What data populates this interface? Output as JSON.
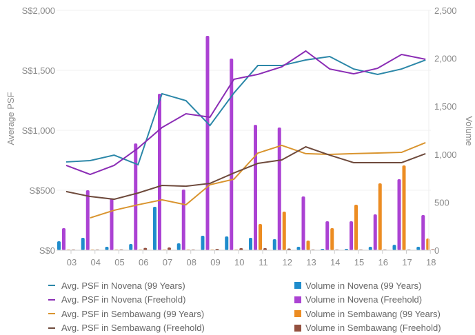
{
  "chart_data": {
    "type": "bar+line",
    "categories": [
      "03",
      "04",
      "05",
      "06",
      "07",
      "08",
      "09",
      "10",
      "11",
      "12",
      "13",
      "14",
      "15",
      "16",
      "17",
      "18"
    ],
    "y_left": {
      "label": "Average PSF",
      "range": [
        0,
        2000
      ],
      "ticks": [
        "S$0",
        "S$500",
        "S$1,000",
        "S$1,500",
        "S$2,000"
      ],
      "tick_values": [
        0,
        500,
        1000,
        1500,
        2000
      ]
    },
    "y_right": {
      "label": "Volume",
      "range": [
        0,
        2500
      ],
      "ticks": [
        "0",
        "500",
        "1,000",
        "1,500",
        "2,000",
        "2,500"
      ],
      "tick_values": [
        0,
        500,
        1000,
        1500,
        2000,
        2500
      ]
    },
    "grid": true,
    "legend_position": "bottom",
    "lines": [
      {
        "name": "Avg. PSF in Novena (99 Years)",
        "color": "#2b87a8",
        "values": [
          736,
          747,
          793,
          713,
          1305,
          1247,
          1040,
          1310,
          1540,
          1540,
          1586,
          1615,
          1511,
          1466,
          1511,
          1586
        ]
      },
      {
        "name": "Avg. PSF in Novena (Freehold)",
        "color": "#8b2db5",
        "values": [
          707,
          632,
          707,
          851,
          1023,
          1138,
          1109,
          1425,
          1466,
          1529,
          1661,
          1511,
          1471,
          1517,
          1632,
          1592
        ]
      },
      {
        "name": "Avg. PSF in Sembawang (99 Years)",
        "color": "#d9942e",
        "values": [
          null,
          270,
          333,
          379,
          420,
          379,
          546,
          592,
          810,
          874,
          805,
          799,
          805,
          810,
          816,
          897
        ]
      },
      {
        "name": "Avg. PSF in Sembawang (Freehold)",
        "color": "#6e4a3c",
        "values": [
          489,
          448,
          425,
          477,
          540,
          534,
          557,
          644,
          724,
          753,
          862,
          793,
          730,
          730,
          730,
          805
        ]
      }
    ],
    "bars": [
      {
        "name": "Volume in Novena (99 Years)",
        "color": "#1f8ccc",
        "values": [
          93,
          129,
          36,
          65,
          453,
          72,
          151,
          144,
          129,
          115,
          36,
          14,
          14,
          36,
          57,
          36
        ]
      },
      {
        "name": "Volume in Novena (Freehold)",
        "color": "#ab42d3",
        "values": [
          230,
          625,
          539,
          1113,
          1631,
          632,
          2234,
          1997,
          1307,
          1279,
          560,
          302,
          302,
          374,
          740,
          366
        ]
      },
      {
        "name": "Volume in Sembawang (99 Years)",
        "color": "#ec8c22",
        "values": [
          0,
          2,
          2,
          2,
          2,
          2,
          2,
          2,
          273,
          402,
          101,
          230,
          474,
          697,
          884,
          122
        ]
      },
      {
        "name": "Volume in Sembawang (Freehold)",
        "color": "#93503f",
        "values": [
          2,
          5,
          8,
          24,
          29,
          5,
          14,
          22,
          22,
          18,
          2,
          2,
          2,
          5,
          5,
          2
        ]
      }
    ]
  }
}
